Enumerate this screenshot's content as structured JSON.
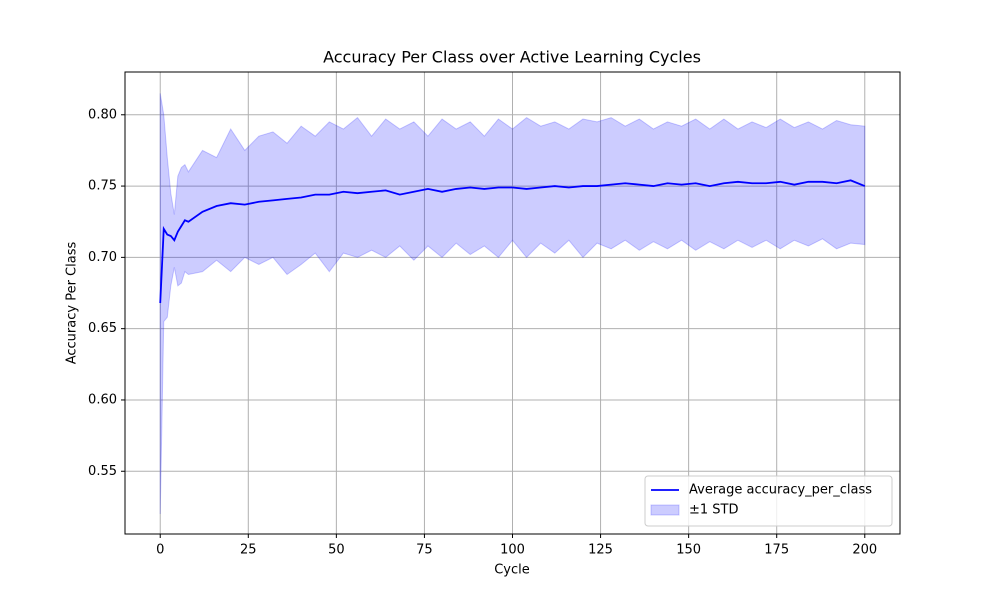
{
  "chart_data": {
    "type": "line",
    "title": "Accuracy Per Class over Active Learning Cycles",
    "x_label": "Cycle",
    "y_label": "Accuracy Per Class",
    "x": [
      0,
      1,
      2,
      3,
      4,
      5,
      6,
      7,
      8,
      12,
      16,
      20,
      24,
      28,
      32,
      36,
      40,
      44,
      48,
      52,
      56,
      60,
      64,
      68,
      72,
      76,
      80,
      84,
      88,
      92,
      96,
      100,
      104,
      108,
      112,
      116,
      120,
      124,
      128,
      132,
      136,
      140,
      144,
      148,
      152,
      156,
      160,
      164,
      168,
      172,
      176,
      180,
      184,
      188,
      192,
      196,
      200
    ],
    "series": [
      {
        "name": "Average accuracy_per_class",
        "color": "#0000ff",
        "values": [
          0.668,
          0.72,
          0.716,
          0.715,
          0.712,
          0.718,
          0.722,
          0.726,
          0.725,
          0.732,
          0.736,
          0.738,
          0.737,
          0.739,
          0.74,
          0.741,
          0.742,
          0.744,
          0.744,
          0.746,
          0.745,
          0.746,
          0.747,
          0.744,
          0.746,
          0.748,
          0.746,
          0.748,
          0.749,
          0.748,
          0.749,
          0.749,
          0.748,
          0.749,
          0.75,
          0.749,
          0.75,
          0.75,
          0.751,
          0.752,
          0.751,
          0.75,
          0.752,
          0.751,
          0.752,
          0.75,
          0.752,
          0.753,
          0.752,
          0.752,
          0.753,
          0.751,
          0.753,
          0.753,
          0.752,
          0.754,
          0.75
        ]
      }
    ],
    "band": {
      "name": "±1 STD",
      "color": "rgba(0,0,255,0.2)",
      "upper": [
        0.815,
        0.8,
        0.77,
        0.745,
        0.73,
        0.757,
        0.763,
        0.765,
        0.76,
        0.775,
        0.77,
        0.79,
        0.775,
        0.785,
        0.788,
        0.78,
        0.792,
        0.785,
        0.795,
        0.79,
        0.798,
        0.785,
        0.797,
        0.79,
        0.795,
        0.785,
        0.797,
        0.79,
        0.795,
        0.785,
        0.797,
        0.79,
        0.798,
        0.792,
        0.795,
        0.79,
        0.797,
        0.795,
        0.798,
        0.792,
        0.797,
        0.79,
        0.795,
        0.792,
        0.797,
        0.79,
        0.797,
        0.79,
        0.795,
        0.791,
        0.797,
        0.791,
        0.795,
        0.79,
        0.796,
        0.793,
        0.792
      ],
      "lower": [
        0.52,
        0.655,
        0.658,
        0.68,
        0.693,
        0.68,
        0.682,
        0.69,
        0.688,
        0.69,
        0.698,
        0.69,
        0.7,
        0.695,
        0.7,
        0.688,
        0.695,
        0.703,
        0.69,
        0.703,
        0.7,
        0.705,
        0.7,
        0.708,
        0.698,
        0.708,
        0.7,
        0.71,
        0.702,
        0.708,
        0.7,
        0.712,
        0.7,
        0.71,
        0.703,
        0.712,
        0.7,
        0.71,
        0.706,
        0.712,
        0.705,
        0.711,
        0.706,
        0.712,
        0.705,
        0.711,
        0.706,
        0.712,
        0.707,
        0.712,
        0.706,
        0.712,
        0.708,
        0.713,
        0.706,
        0.71,
        0.709
      ]
    },
    "xlim": [
      -10,
      210
    ],
    "ylim": [
      0.506,
      0.83
    ],
    "xticks": [
      0,
      25,
      50,
      75,
      100,
      125,
      150,
      175,
      200
    ],
    "yticks": [
      {
        "value": 0.55,
        "label": "0.55"
      },
      {
        "value": 0.6,
        "label": "0.60"
      },
      {
        "value": 0.65,
        "label": "0.65"
      },
      {
        "value": 0.7,
        "label": "0.70"
      },
      {
        "value": 0.75,
        "label": "0.75"
      },
      {
        "value": 0.8,
        "label": "0.80"
      }
    ],
    "grid": true,
    "legend": "lower right"
  }
}
